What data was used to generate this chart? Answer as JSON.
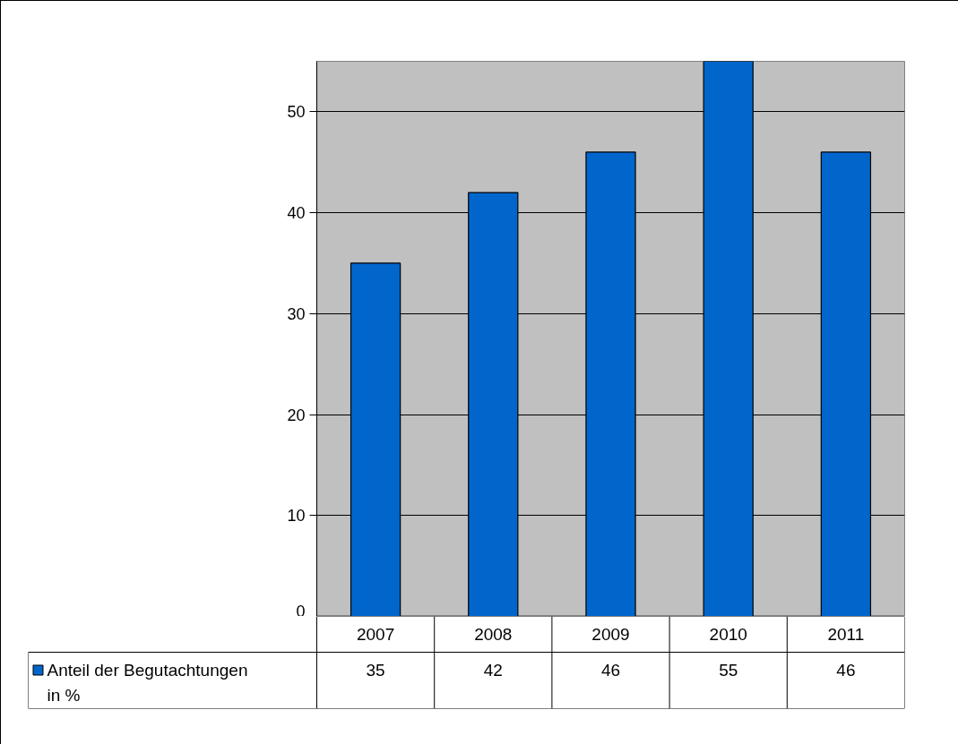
{
  "chart_data": {
    "type": "bar",
    "categories": [
      "2007",
      "2008",
      "2009",
      "2010",
      "2011"
    ],
    "series": [
      {
        "name": "Anteil der Begutachtungen in %",
        "color": "#0066cc",
        "values": [
          35,
          42,
          46,
          55,
          46
        ]
      }
    ],
    "ylim": [
      0,
      55
    ],
    "yticks": [
      0,
      10,
      20,
      30,
      40,
      50
    ],
    "grid": "y",
    "legend": "bottom",
    "data_labels": true
  }
}
